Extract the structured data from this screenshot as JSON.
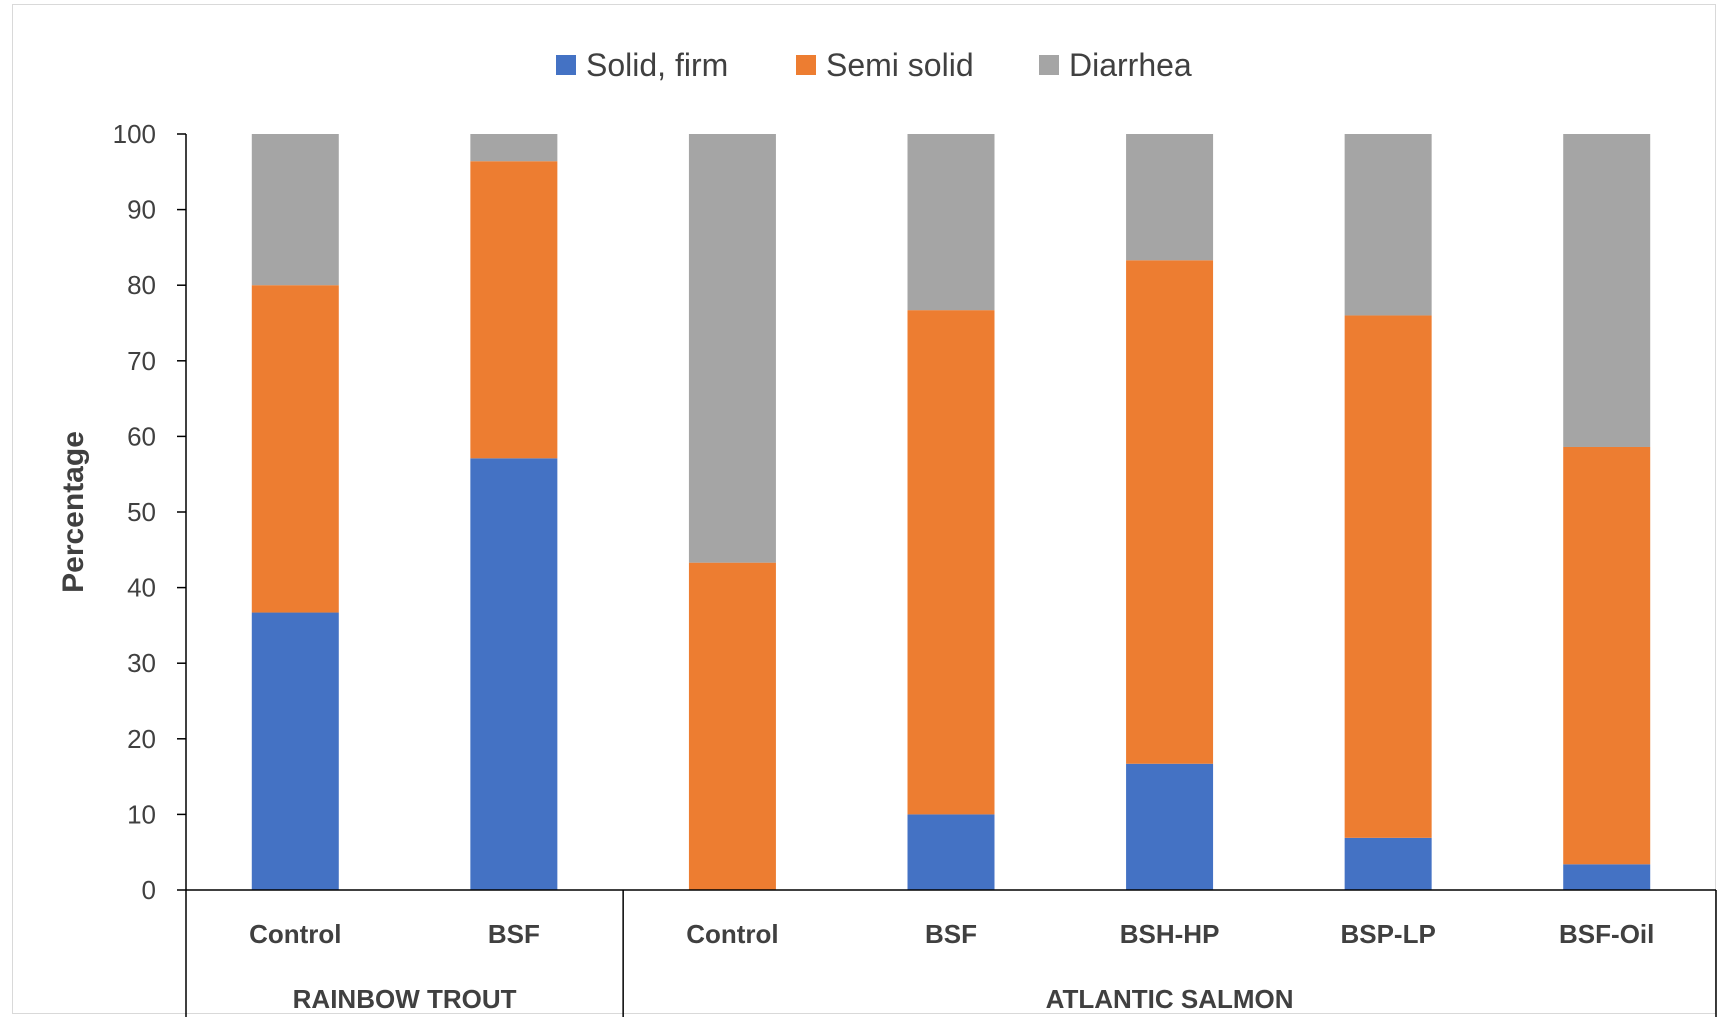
{
  "chart_data": {
    "type": "bar",
    "stacked": true,
    "groups": [
      {
        "name": "RAINBOW TROUT",
        "categories": [
          "Control",
          "BSF"
        ]
      },
      {
        "name": "ATLANTIC SALMON",
        "categories": [
          "Control",
          "BSF",
          "BSH-HP",
          "BSP-LP",
          "BSF-Oil"
        ]
      }
    ],
    "series": [
      {
        "name": "Solid, firm",
        "color": "#4472c4",
        "values": [
          36.7,
          57.1,
          0,
          10,
          16.7,
          6.9,
          3.4
        ]
      },
      {
        "name": "Semi solid",
        "color": "#ed7d31",
        "values": [
          43.3,
          39.3,
          43.3,
          66.7,
          66.6,
          69.1,
          55.2
        ]
      },
      {
        "name": "Diarrhea",
        "color": "#a5a5a5",
        "values": [
          20,
          3.6,
          56.7,
          23.3,
          16.7,
          24,
          41.4
        ]
      }
    ],
    "ylabel": "Percentage",
    "xlabel": "",
    "ylim": [
      0,
      100
    ],
    "yticks": [
      0,
      10,
      20,
      30,
      40,
      50,
      60,
      70,
      80,
      90,
      100
    ],
    "legend": "top",
    "grid": false
  }
}
